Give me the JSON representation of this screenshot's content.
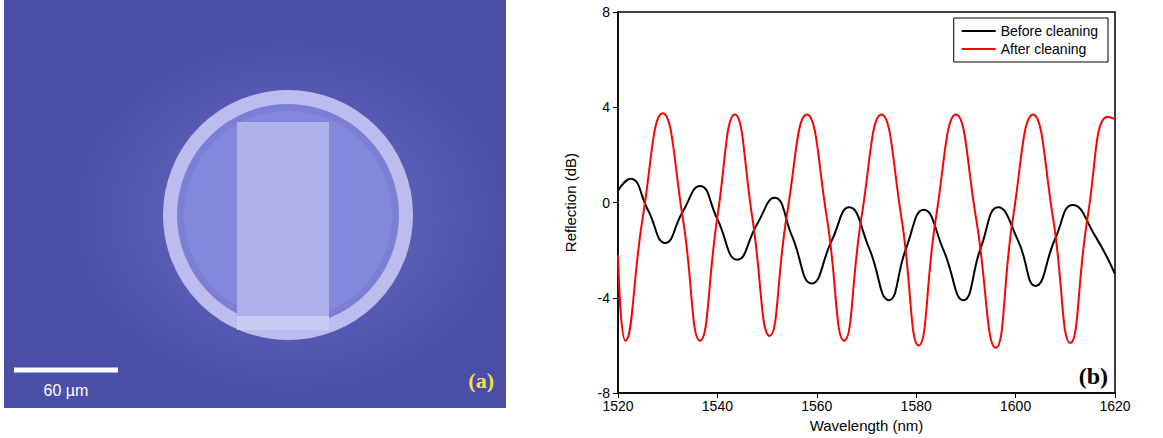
{
  "image_panel": {
    "label": "(a)",
    "scale_bar": "60 µm"
  },
  "chart_data": {
    "type": "line",
    "x_label": "Wavelength (nm)",
    "y_label": "Reflection (dB)",
    "annotations": [
      "(b)"
    ],
    "xlim": [
      1520,
      1620
    ],
    "xticks": [
      1520,
      1540,
      1560,
      1580,
      1600,
      1620
    ],
    "ylim": [
      -8,
      8
    ],
    "yticks": [
      -8,
      -4,
      0,
      4,
      8
    ],
    "grid": false,
    "legend": "top-right",
    "marker": "none",
    "series": [
      {
        "name": "Before cleaning",
        "color": "#000000",
        "x": [
          1520,
          1522.5,
          1526,
          1529.5,
          1533,
          1536.5,
          1540,
          1544,
          1548,
          1551.5,
          1555,
          1559,
          1563,
          1566.5,
          1570.5,
          1574.5,
          1578,
          1581.5,
          1585.5,
          1589.5,
          1593,
          1596.5,
          1600.5,
          1604,
          1608,
          1611.5,
          1616,
          1620
        ],
        "values": [
          0.5,
          1.0,
          -0.3,
          -1.7,
          -0.4,
          0.7,
          -0.7,
          -2.4,
          -0.9,
          0.2,
          -1.4,
          -3.4,
          -1.6,
          -0.2,
          -1.9,
          -4.1,
          -1.9,
          -0.3,
          -2.0,
          -4.1,
          -1.9,
          -0.2,
          -1.6,
          -3.5,
          -1.5,
          -0.1,
          -1.4,
          -3.0
        ]
      },
      {
        "name": "After cleaning",
        "color": "#ff0000",
        "x": [
          1520,
          1521.5,
          1525,
          1529,
          1533,
          1536.5,
          1540,
          1543.5,
          1547,
          1550.5,
          1554,
          1558,
          1562,
          1565.5,
          1569,
          1573,
          1577,
          1580.5,
          1584,
          1588,
          1592,
          1596,
          1599.5,
          1603.5,
          1607.5,
          1611,
          1614.5,
          1618.5,
          1620
        ],
        "values": [
          -2.2,
          -5.8,
          -0.6,
          3.75,
          -0.6,
          -5.8,
          -0.6,
          3.7,
          -0.6,
          -5.6,
          -0.5,
          3.7,
          -0.6,
          -5.8,
          -0.6,
          3.7,
          -0.6,
          -6.0,
          -0.6,
          3.7,
          -0.6,
          -6.1,
          -0.6,
          3.7,
          -0.6,
          -5.9,
          -0.6,
          3.6,
          3.5
        ]
      }
    ]
  }
}
